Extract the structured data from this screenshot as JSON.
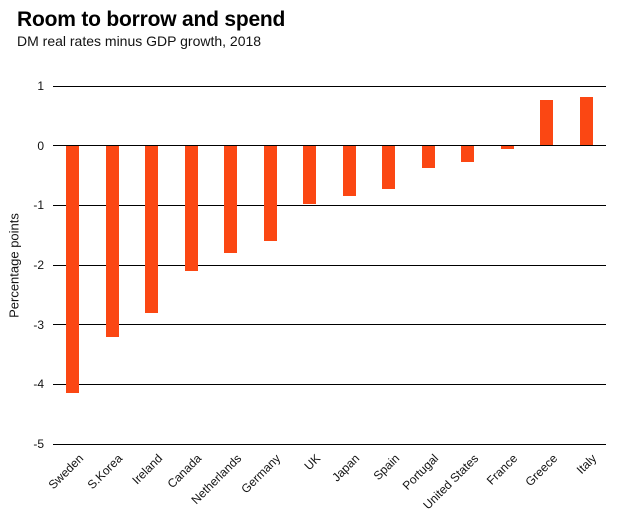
{
  "header": {
    "title": "Room to borrow and spend",
    "subtitle": "DM real rates minus GDP growth, 2018"
  },
  "colors": {
    "bar": "#fb4713",
    "grid": "#000000",
    "text": "#121212",
    "background": "#ffffff"
  },
  "chart_data": {
    "type": "bar",
    "title": "Room to borrow and spend",
    "subtitle": "DM real rates minus GDP growth, 2018",
    "xlabel": "",
    "ylabel": "Percentage points",
    "ylim": [
      -5,
      1
    ],
    "yticks": [
      1,
      0,
      -1,
      -2,
      -3,
      -4,
      -5
    ],
    "grid": true,
    "legend": "none",
    "bar_color": "#fb4713",
    "categories": [
      "Sweden",
      "S.Korea",
      "Ireland",
      "Canada",
      "Netherlands",
      "Germany",
      "UK",
      "Japan",
      "Spain",
      "Portugal",
      "United States",
      "France",
      "Greece",
      "Italy"
    ],
    "values": [
      -4.15,
      -3.2,
      -2.8,
      -2.1,
      -1.8,
      -1.6,
      -0.98,
      -0.85,
      -0.73,
      -0.38,
      -0.28,
      -0.06,
      0.77,
      0.82
    ]
  }
}
